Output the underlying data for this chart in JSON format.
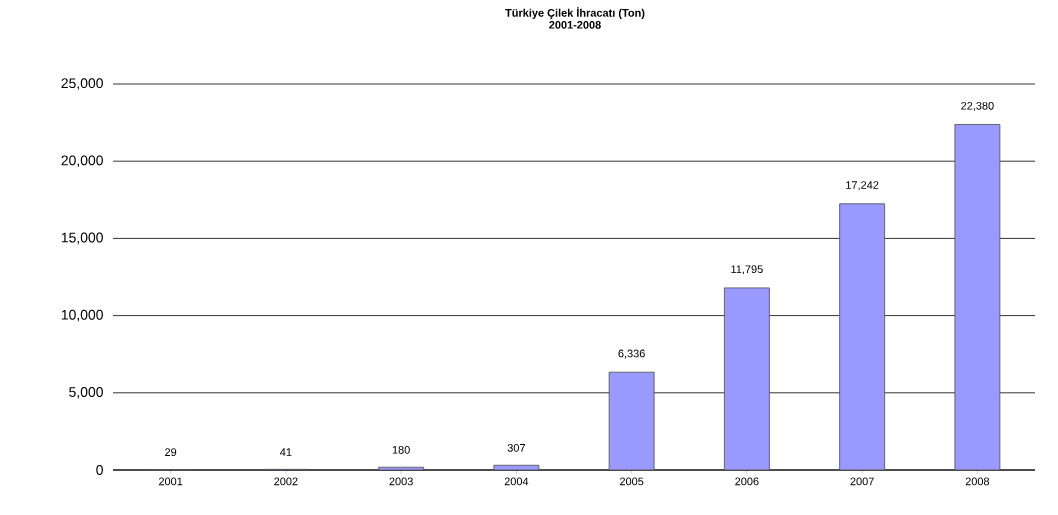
{
  "chart_data": {
    "type": "bar",
    "title": "Türkiye Çilek İhracatı (Ton)",
    "subtitle": "2001-2008",
    "categories": [
      "2001",
      "2002",
      "2003",
      "2004",
      "2005",
      "2006",
      "2007",
      "2008"
    ],
    "values": [
      29,
      41,
      180,
      307,
      6336,
      11795,
      17242,
      22380
    ],
    "value_labels": [
      "29",
      "41",
      "180",
      "307",
      "6,336",
      "11,795",
      "17,242",
      "22,380"
    ],
    "color": "#9999ff",
    "ylim": [
      0,
      25000
    ],
    "yticks": [
      {
        "value": 0,
        "label": "0"
      },
      {
        "value": 5000,
        "label": "5,000"
      },
      {
        "value": 10000,
        "label": "10,000"
      },
      {
        "value": 15000,
        "label": "15,000"
      },
      {
        "value": 20000,
        "label": "20,000"
      },
      {
        "value": 25000,
        "label": "25,000"
      }
    ],
    "grid": "y"
  }
}
